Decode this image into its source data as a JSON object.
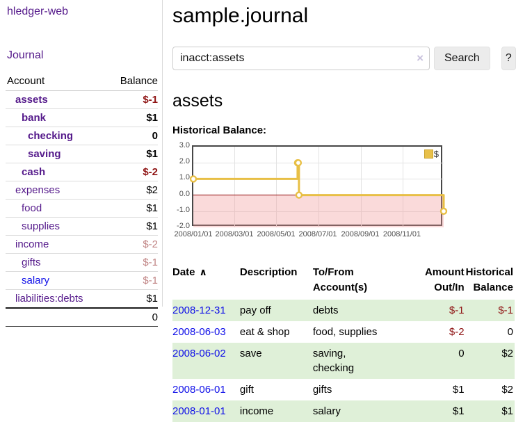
{
  "app": {
    "title": "hledger-web"
  },
  "sidebar": {
    "journal_link": "Journal",
    "accounts_header": {
      "account": "Account",
      "balance": "Balance"
    },
    "accounts": [
      {
        "label": "assets",
        "balance": "$-1"
      },
      {
        "label": "bank",
        "balance": "$1"
      },
      {
        "label": "checking",
        "balance": "0"
      },
      {
        "label": "saving",
        "balance": "$1"
      },
      {
        "label": "cash",
        "balance": "$-2"
      },
      {
        "label": "expenses",
        "balance": "$2"
      },
      {
        "label": "food",
        "balance": "$1"
      },
      {
        "label": "supplies",
        "balance": "$1"
      },
      {
        "label": "income",
        "balance": "$-2"
      },
      {
        "label": "gifts",
        "balance": "$-1"
      },
      {
        "label": "salary",
        "balance": "$-1"
      },
      {
        "label": "liabilities:debts",
        "balance": "$1"
      }
    ],
    "total": "0"
  },
  "main": {
    "title": "sample.journal",
    "search": {
      "value": "inacct:assets",
      "button_label": "Search",
      "help_label": "?",
      "clear_icon": "×"
    },
    "account_heading": "assets",
    "chart_heading": "Historical Balance:"
  },
  "chart_data": {
    "type": "line",
    "title": "Historical Balance of assets",
    "legend": "$",
    "legend_position": "top-right",
    "grid": true,
    "ylim": [
      -2,
      3
    ],
    "y_ticks": [
      "3.0",
      "2.0",
      "1.0",
      "0.0",
      "-1.0",
      "-2.0"
    ],
    "x_ticks": [
      "2008/01/01",
      "2008/03/01",
      "2008/05/01",
      "2008/07/01",
      "2008/09/01",
      "2008/11/01"
    ],
    "series": [
      {
        "name": "$",
        "points": [
          {
            "date": "2008-01-01",
            "day": 0,
            "value": 1
          },
          {
            "date": "2008-06-01",
            "day": 152,
            "value": 2
          },
          {
            "date": "2008-06-02",
            "day": 153,
            "value": 2
          },
          {
            "date": "2008-06-03",
            "day": 154,
            "value": 0
          },
          {
            "date": "2008-12-31",
            "day": 365,
            "value": -1
          }
        ]
      }
    ],
    "colors": {
      "line": "#e8bf45",
      "negative_region": "#fadada",
      "zero_line": "#8b0000"
    }
  },
  "register": {
    "headers": {
      "date": "Date",
      "sort_icon": "∧",
      "description": "Description",
      "accounts": "To/From\nAccount(s)",
      "amount": "Amount\nOut/In",
      "balance": "Historical\nBalance"
    },
    "rows": [
      {
        "date": "2008-12-31",
        "description": "pay off",
        "accounts": "debts",
        "amount": "$-1",
        "balance": "$-1"
      },
      {
        "date": "2008-06-03",
        "description": "eat & shop",
        "accounts": "food, supplies",
        "amount": "$-2",
        "balance": "0"
      },
      {
        "date": "2008-06-02",
        "description": "save",
        "accounts": "saving,\nchecking",
        "amount": "0",
        "balance": "$2"
      },
      {
        "date": "2008-06-01",
        "description": "gift",
        "accounts": "gifts",
        "amount": "$1",
        "balance": "$2"
      },
      {
        "date": "2008-01-01",
        "description": "income",
        "accounts": "salary",
        "amount": "$1",
        "balance": "$1"
      }
    ]
  }
}
